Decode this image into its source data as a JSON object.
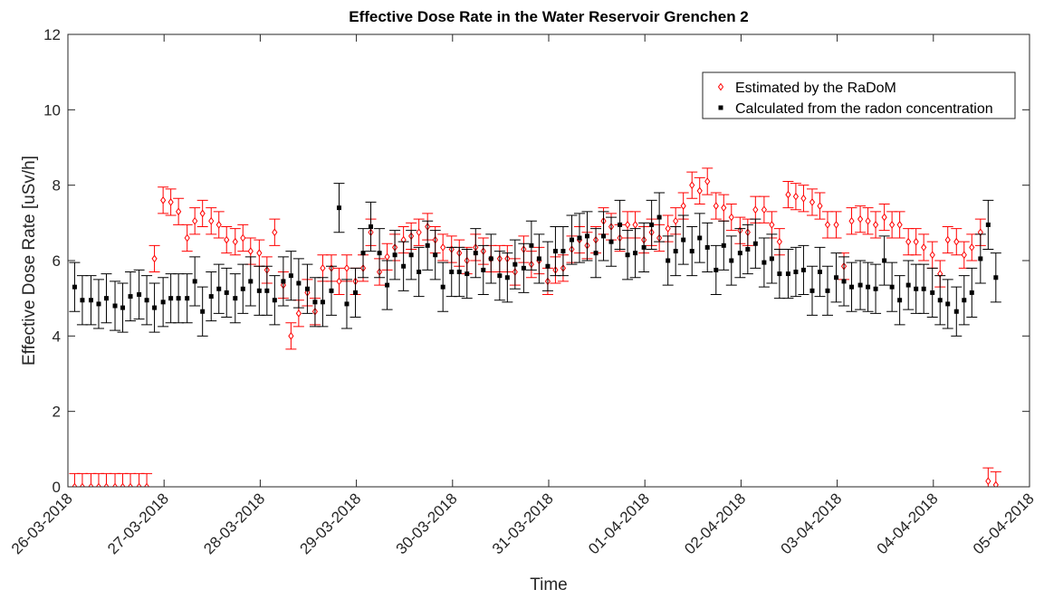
{
  "chart_data": {
    "type": "errorbar-scatter",
    "title": "Effective Dose Rate in the Water Reservoir Grenchen 2",
    "x_label": "Time",
    "y_label": "Effective Dose Rate [uSv/h]",
    "xlim": [
      0,
      10
    ],
    "ylim": [
      0,
      12
    ],
    "xticks": [
      {
        "value": 0,
        "label": "26-03-2018"
      },
      {
        "value": 1,
        "label": "27-03-2018"
      },
      {
        "value": 2,
        "label": "28-03-2018"
      },
      {
        "value": 3,
        "label": "29-03-2018"
      },
      {
        "value": 4,
        "label": "30-03-2018"
      },
      {
        "value": 5,
        "label": "31-03-2018"
      },
      {
        "value": 6,
        "label": "01-04-2018"
      },
      {
        "value": 7,
        "label": "02-04-2018"
      },
      {
        "value": 8,
        "label": "03-04-2018"
      },
      {
        "value": 9,
        "label": "04-04-2018"
      },
      {
        "value": 10,
        "label": "05-04-2018"
      }
    ],
    "yticks": [
      0,
      2,
      4,
      6,
      8,
      10,
      12
    ],
    "legend": "upper right",
    "x": [
      0.07,
      0.15,
      0.24,
      0.32,
      0.4,
      0.49,
      0.57,
      0.65,
      0.74,
      0.82,
      0.9,
      0.99,
      1.07,
      1.15,
      1.24,
      1.32,
      1.4,
      1.49,
      1.57,
      1.65,
      1.74,
      1.82,
      1.9,
      1.99,
      2.07,
      2.15,
      2.24,
      2.32,
      2.4,
      2.49,
      2.57,
      2.65,
      2.74,
      2.82,
      2.9,
      2.99,
      3.07,
      3.15,
      3.24,
      3.32,
      3.4,
      3.49,
      3.57,
      3.65,
      3.74,
      3.82,
      3.9,
      3.99,
      4.07,
      4.15,
      4.24,
      4.32,
      4.4,
      4.49,
      4.57,
      4.65,
      4.74,
      4.82,
      4.9,
      4.99,
      5.07,
      5.15,
      5.24,
      5.32,
      5.4,
      5.49,
      5.57,
      5.65,
      5.74,
      5.82,
      5.9,
      5.99,
      6.07,
      6.15,
      6.24,
      6.32,
      6.4,
      6.49,
      6.57,
      6.65,
      6.74,
      6.82,
      6.9,
      6.99,
      7.07,
      7.15,
      7.24,
      7.32,
      7.4,
      7.49,
      7.57,
      7.65,
      7.74,
      7.82,
      7.9,
      7.99,
      8.07,
      8.15,
      8.24,
      8.32,
      8.4,
      8.49,
      8.57,
      8.65,
      8.74,
      8.82,
      8.9,
      8.99,
      9.07,
      9.15,
      9.24,
      9.32,
      9.4,
      9.49,
      9.57,
      9.65
    ],
    "series": [
      {
        "name": "Estimated by the RaDoM",
        "color": "#ff0000",
        "marker": "diamond",
        "error": 0.35,
        "values": [
          0,
          0,
          0,
          0,
          0,
          0,
          0,
          0,
          0,
          0,
          6.05,
          7.6,
          7.55,
          7.3,
          6.6,
          7.05,
          7.25,
          7.05,
          6.95,
          6.55,
          6.5,
          6.6,
          6.25,
          6.2,
          5.75,
          6.75,
          5.35,
          4.0,
          4.6,
          5.15,
          4.65,
          5.8,
          5.8,
          5.45,
          5.8,
          5.45,
          5.8,
          6.75,
          5.7,
          6.1,
          6.35,
          6.55,
          6.65,
          6.75,
          6.9,
          6.55,
          6.35,
          6.3,
          6.2,
          6.0,
          6.35,
          6.25,
          6.05,
          6.05,
          6.05,
          5.7,
          6.3,
          5.9,
          6.0,
          5.45,
          5.75,
          5.8,
          6.3,
          6.55,
          6.4,
          6.55,
          7.05,
          6.9,
          6.6,
          6.95,
          6.95,
          6.55,
          6.75,
          6.6,
          6.85,
          7.05,
          7.45,
          8.0,
          7.85,
          8.1,
          7.45,
          7.4,
          7.15,
          6.8,
          6.75,
          7.35,
          7.35,
          6.95,
          6.5,
          7.75,
          7.7,
          7.65,
          7.55,
          7.45,
          6.95,
          6.95,
          5.85,
          7.05,
          7.1,
          7.05,
          6.95,
          7.15,
          6.95,
          6.95,
          6.5,
          6.5,
          6.35,
          6.15,
          5.65,
          6.55,
          6.5,
          6.15,
          6.35,
          6.75,
          0.15,
          0.05
        ]
      },
      {
        "name": "Calculated from the radon concentration",
        "color": "#000000",
        "marker": "square",
        "error": 0.65,
        "values": [
          5.3,
          4.95,
          4.95,
          4.85,
          5.0,
          4.8,
          4.75,
          5.05,
          5.1,
          4.95,
          4.75,
          4.9,
          5.0,
          5.0,
          5.0,
          5.45,
          4.65,
          5.05,
          5.25,
          5.15,
          5.0,
          5.25,
          5.45,
          5.2,
          5.2,
          4.95,
          5.45,
          5.6,
          5.4,
          5.25,
          4.9,
          4.9,
          5.2,
          7.4,
          4.85,
          5.15,
          6.2,
          6.9,
          6.2,
          5.35,
          6.15,
          5.85,
          6.15,
          5.7,
          6.4,
          6.15,
          5.3,
          5.7,
          5.7,
          5.65,
          6.2,
          5.75,
          6.05,
          5.6,
          5.55,
          5.9,
          5.8,
          6.4,
          6.05,
          5.85,
          6.25,
          6.25,
          6.55,
          6.6,
          6.65,
          6.2,
          6.65,
          6.5,
          6.95,
          6.15,
          6.2,
          6.35,
          6.95,
          7.15,
          6.0,
          6.25,
          6.55,
          6.25,
          6.6,
          6.35,
          5.75,
          6.4,
          6.0,
          6.2,
          6.3,
          6.45,
          5.95,
          6.05,
          5.65,
          5.65,
          5.7,
          5.75,
          5.2,
          5.7,
          5.2,
          5.55,
          5.45,
          5.3,
          5.35,
          5.3,
          5.25,
          6.0,
          5.3,
          4.95,
          5.35,
          5.25,
          5.25,
          5.15,
          4.95,
          4.85,
          4.65,
          4.95,
          5.15,
          6.05,
          6.95,
          5.55
        ]
      }
    ]
  }
}
